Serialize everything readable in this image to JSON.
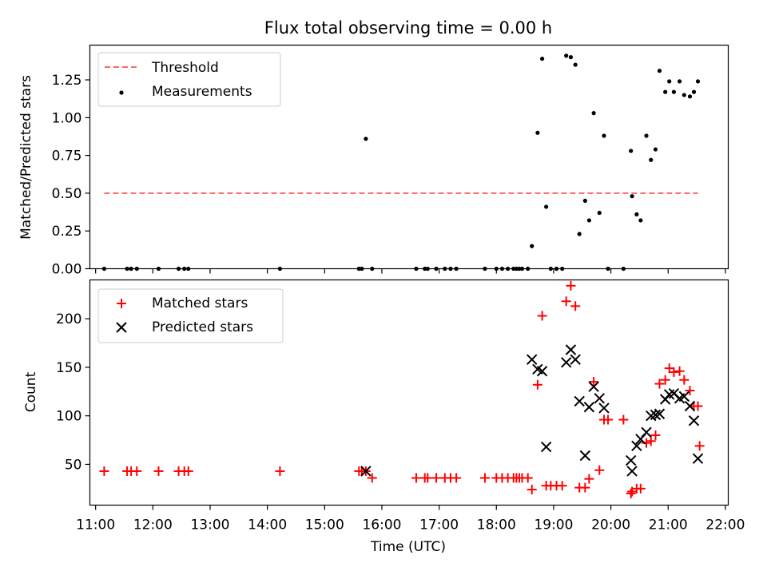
{
  "figure": {
    "title": "Flux total observing time = 0.00 h"
  },
  "chart_data": [
    {
      "type": "scatter",
      "panel": "top",
      "ylabel": "Matched/Predicted stars",
      "xlim_hours": [
        10.9,
        22.05
      ],
      "ylim": [
        0,
        1.48
      ],
      "yticks": [
        0.0,
        0.25,
        0.5,
        0.75,
        1.0,
        1.25
      ],
      "yticklabels": [
        "0.00",
        "0.25",
        "0.50",
        "0.75",
        "1.00",
        "1.25"
      ],
      "legend": {
        "placement": "top-left",
        "entries": [
          "Threshold",
          "Measurements"
        ]
      },
      "threshold": {
        "name": "Threshold",
        "y": 0.5,
        "x": [
          11.15,
          21.52
        ],
        "color": "#ff6666"
      },
      "series": [
        {
          "name": "Measurements",
          "marker": "dot",
          "color": "#000000",
          "x": [
            11.15,
            11.55,
            11.62,
            11.72,
            12.1,
            12.45,
            12.55,
            12.62,
            14.22,
            15.6,
            15.65,
            15.72,
            15.83,
            16.6,
            16.75,
            16.8,
            16.95,
            17.1,
            17.2,
            17.3,
            17.8,
            18.0,
            18.1,
            18.2,
            18.3,
            18.35,
            18.4,
            18.45,
            18.55,
            18.62,
            18.72,
            18.8,
            18.87,
            18.95,
            19.05,
            19.15,
            19.22,
            19.3,
            19.38,
            19.45,
            19.55,
            19.62,
            19.7,
            19.8,
            19.88,
            19.95,
            20.22,
            20.35,
            20.37,
            20.45,
            20.52,
            20.62,
            20.7,
            20.78,
            20.85,
            20.95,
            21.02,
            21.1,
            21.2,
            21.28,
            21.38,
            21.45,
            21.52
          ],
          "y": [
            0.0,
            0.0,
            0.0,
            0.0,
            0.0,
            0.0,
            0.0,
            0.0,
            0.0,
            0.0,
            0.0,
            0.86,
            0.0,
            0.0,
            0.0,
            0.0,
            0.0,
            0.0,
            0.0,
            0.0,
            0.0,
            0.0,
            0.0,
            0.0,
            0.0,
            0.0,
            0.0,
            0.0,
            0.0,
            0.15,
            0.9,
            1.39,
            0.41,
            0.0,
            0.0,
            0.0,
            1.41,
            1.4,
            1.35,
            0.23,
            0.45,
            0.32,
            1.03,
            0.37,
            0.88,
            0.0,
            0.0,
            0.78,
            0.48,
            0.36,
            0.32,
            0.88,
            0.72,
            0.79,
            1.31,
            1.17,
            1.24,
            1.17,
            1.24,
            1.15,
            1.14,
            1.17,
            1.24
          ]
        }
      ]
    },
    {
      "type": "scatter",
      "panel": "bottom",
      "xlabel": "Time (UTC)",
      "ylabel": "Count",
      "xlim_hours": [
        10.9,
        22.05
      ],
      "ylim": [
        8,
        240
      ],
      "xticks_hours": [
        11,
        12,
        13,
        14,
        15,
        16,
        17,
        18,
        19,
        20,
        21,
        22
      ],
      "xticklabels": [
        "11:00",
        "12:00",
        "13:00",
        "14:00",
        "15:00",
        "16:00",
        "17:00",
        "18:00",
        "19:00",
        "20:00",
        "21:00",
        "22:00"
      ],
      "yticks": [
        50,
        100,
        150,
        200
      ],
      "yticklabels": [
        "50",
        "100",
        "150",
        "200"
      ],
      "legend": {
        "placement": "top-left",
        "entries": [
          "Matched stars",
          "Predicted stars"
        ]
      },
      "series": [
        {
          "name": "Matched stars",
          "marker": "plus",
          "color": "#ff0000",
          "x": [
            11.15,
            11.55,
            11.62,
            11.72,
            12.1,
            12.45,
            12.55,
            12.62,
            14.22,
            15.6,
            15.65,
            15.72,
            15.83,
            16.6,
            16.75,
            16.8,
            16.95,
            17.1,
            17.2,
            17.3,
            17.8,
            18.0,
            18.1,
            18.2,
            18.3,
            18.35,
            18.4,
            18.45,
            18.55,
            18.62,
            18.72,
            18.8,
            18.87,
            18.95,
            19.05,
            19.15,
            19.22,
            19.3,
            19.38,
            19.45,
            19.55,
            19.62,
            19.7,
            19.8,
            19.88,
            19.95,
            20.22,
            20.35,
            20.37,
            20.45,
            20.52,
            20.62,
            20.7,
            20.78,
            20.85,
            20.95,
            21.02,
            21.1,
            21.2,
            21.28,
            21.38,
            21.45,
            21.52,
            21.55
          ],
          "y": [
            43,
            43,
            43,
            43,
            43,
            43,
            43,
            43,
            43,
            43,
            43,
            43,
            36,
            36,
            36,
            36,
            36,
            36,
            36,
            36,
            36,
            36,
            36,
            36,
            36,
            36,
            36,
            36,
            36,
            24,
            132,
            203,
            28,
            28,
            28,
            28,
            218,
            234,
            213,
            26,
            26,
            35,
            135,
            44,
            96,
            96,
            96,
            20,
            22,
            25,
            25,
            72,
            74,
            80,
            133,
            137,
            149,
            145,
            146,
            137,
            126,
            110,
            110,
            69
          ],
          "description_count": 64
        },
        {
          "name": "Predicted stars",
          "marker": "x",
          "color": "#000000",
          "x": [
            15.72,
            18.62,
            18.72,
            18.8,
            18.87,
            19.22,
            19.3,
            19.38,
            19.45,
            19.55,
            19.62,
            19.7,
            19.8,
            19.88,
            20.35,
            20.37,
            20.45,
            20.52,
            20.62,
            20.7,
            20.78,
            20.85,
            20.95,
            21.02,
            21.1,
            21.2,
            21.28,
            21.38,
            21.45,
            21.52
          ],
          "y": [
            43,
            158,
            148,
            146,
            68,
            155,
            168,
            158,
            115,
            59,
            109,
            130,
            118,
            108,
            54,
            43,
            69,
            76,
            83,
            100,
            101,
            102,
            117,
            122,
            123,
            118,
            120,
            110,
            95,
            56
          ]
        }
      ]
    }
  ]
}
